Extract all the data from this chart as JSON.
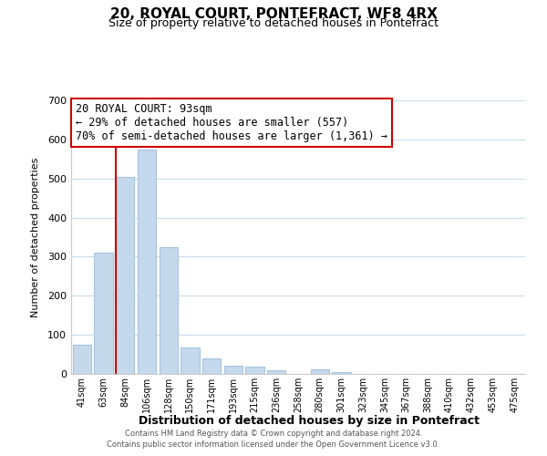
{
  "title": "20, ROYAL COURT, PONTEFRACT, WF8 4RX",
  "subtitle": "Size of property relative to detached houses in Pontefract",
  "xlabel": "Distribution of detached houses by size in Pontefract",
  "ylabel": "Number of detached properties",
  "bar_labels": [
    "41sqm",
    "63sqm",
    "84sqm",
    "106sqm",
    "128sqm",
    "150sqm",
    "171sqm",
    "193sqm",
    "215sqm",
    "236sqm",
    "258sqm",
    "280sqm",
    "301sqm",
    "323sqm",
    "345sqm",
    "367sqm",
    "388sqm",
    "410sqm",
    "432sqm",
    "453sqm",
    "475sqm"
  ],
  "bar_values": [
    75,
    310,
    505,
    575,
    325,
    68,
    40,
    20,
    18,
    10,
    0,
    12,
    5,
    0,
    0,
    0,
    0,
    0,
    0,
    0,
    0
  ],
  "bar_color": "#c5d9ec",
  "bar_edge_color": "#a8c4de",
  "property_line_index": 2,
  "property_line_color": "#cc0000",
  "ylim": [
    0,
    700
  ],
  "yticks": [
    0,
    100,
    200,
    300,
    400,
    500,
    600,
    700
  ],
  "annotation_text": "20 ROYAL COURT: 93sqm\n← 29% of detached houses are smaller (557)\n70% of semi-detached houses are larger (1,361) →",
  "annotation_box_color": "#ffffff",
  "annotation_box_edgecolor": "#cc0000",
  "footer_line1": "Contains HM Land Registry data © Crown copyright and database right 2024.",
  "footer_line2": "Contains public sector information licensed under the Open Government Licence v3.0.",
  "background_color": "#ffffff",
  "grid_color": "#c8dcea"
}
